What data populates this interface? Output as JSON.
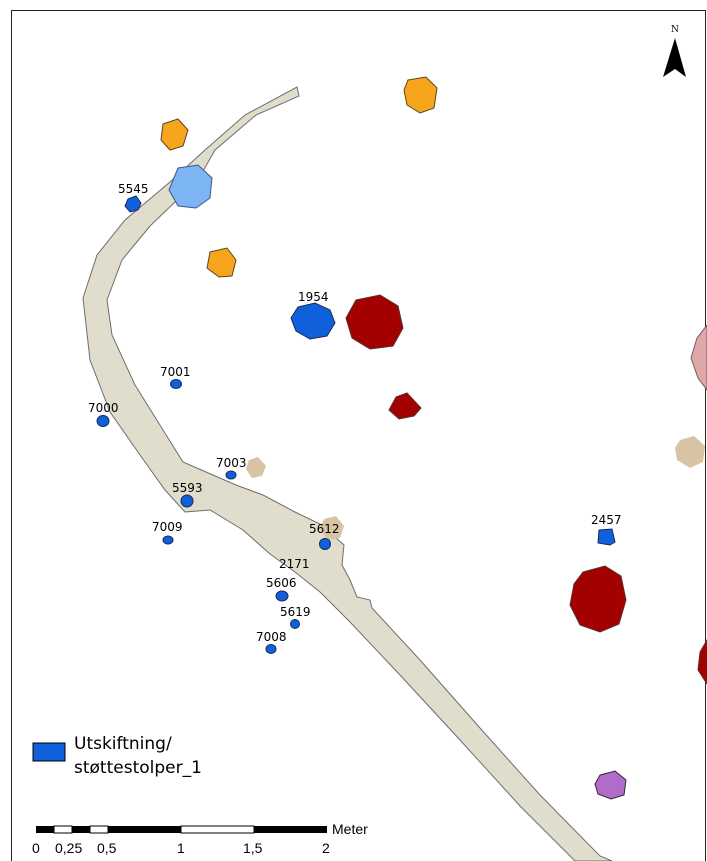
{
  "map": {
    "north_label": "N",
    "colors": {
      "band": "#e0ddcd",
      "band_stroke": "#6e6e6e",
      "post_blue": "#1060dc",
      "light_blue": "#7cb4f4",
      "orange": "#f7a51c",
      "dark_red": "#a30000",
      "tan": "#d8c4a4",
      "pink": "#dea8a8",
      "purple": "#b06cc8"
    },
    "feature_labels": {
      "f5545": "5545",
      "f1954": "1954",
      "f7001": "7001",
      "f7000": "7000",
      "f7003": "7003",
      "f5593": "5593",
      "f7009": "7009",
      "f5612": "5612",
      "f2171": "2171",
      "f5606": "5606",
      "f5619": "5619",
      "f7008": "7008",
      "f2457": "2457"
    }
  },
  "legend": {
    "label_line1": "Utskiftning/",
    "label_line2": "støttestolper_1"
  },
  "scale_bar": {
    "unit": "Meter",
    "ticks": [
      "0",
      "0,25",
      "0,5",
      "1",
      "1,5",
      "2"
    ]
  }
}
